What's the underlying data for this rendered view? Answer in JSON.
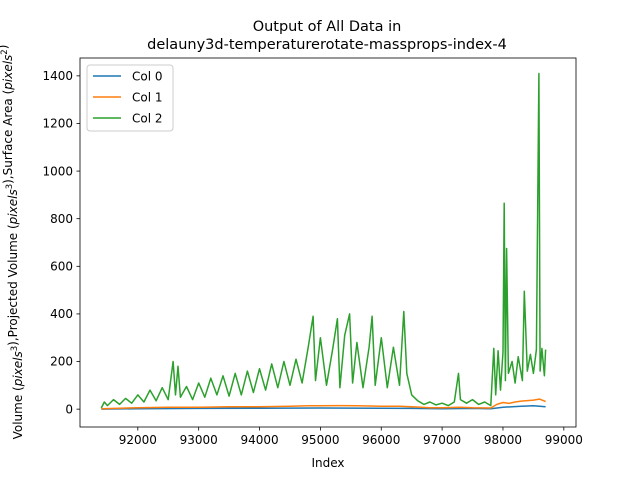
{
  "chart_data": {
    "type": "line",
    "title_line1": "Output of All Data in",
    "title_line2": "delauny3d-temperaturerotate-massprops-index-4",
    "xlabel": "Index",
    "ylabel": "Volume ($pixels^3$),Projected Volume ($pixels^3$),Surface Area ($pixels^2$)",
    "ylabel_parts": [
      {
        "text": "Volume (",
        "italic": false
      },
      {
        "text": "pixels",
        "italic": true
      },
      {
        "text": "3",
        "italic": false,
        "sup": true
      },
      {
        "text": "),Projected Volume (",
        "italic": false
      },
      {
        "text": "pixels",
        "italic": true
      },
      {
        "text": "3",
        "italic": false,
        "sup": true
      },
      {
        "text": "),Surface Area (",
        "italic": false
      },
      {
        "text": "pixels",
        "italic": true
      },
      {
        "text": "2",
        "italic": false,
        "sup": true
      },
      {
        "text": ")",
        "italic": false
      }
    ],
    "xlim": [
      91050,
      99200
    ],
    "ylim": [
      -75,
      1475
    ],
    "xticks": [
      92000,
      93000,
      94000,
      95000,
      96000,
      97000,
      98000,
      99000
    ],
    "xtick_labels": [
      "92000",
      "93000",
      "94000",
      "95000",
      "96000",
      "97000",
      "98000",
      "99000"
    ],
    "yticks": [
      0,
      200,
      400,
      600,
      800,
      1000,
      1200,
      1400
    ],
    "ytick_labels": [
      "0",
      "200",
      "400",
      "600",
      "800",
      "1000",
      "1200",
      "1400"
    ],
    "grid": false,
    "legend_position": "top-left",
    "series": [
      {
        "name": "Col 0",
        "color": "#1f77b4",
        "points": [
          [
            91400,
            0
          ],
          [
            92000,
            2
          ],
          [
            93000,
            3
          ],
          [
            94000,
            4
          ],
          [
            95000,
            5
          ],
          [
            96000,
            4
          ],
          [
            96500,
            3
          ],
          [
            97000,
            2
          ],
          [
            97500,
            3
          ],
          [
            97800,
            2
          ],
          [
            98000,
            8
          ],
          [
            98300,
            12
          ],
          [
            98500,
            14
          ],
          [
            98700,
            10
          ]
        ]
      },
      {
        "name": "Col 1",
        "color": "#ff7f0e",
        "points": [
          [
            91400,
            2
          ],
          [
            91700,
            4
          ],
          [
            92000,
            6
          ],
          [
            92500,
            8
          ],
          [
            93000,
            8
          ],
          [
            93500,
            10
          ],
          [
            94000,
            10
          ],
          [
            94500,
            12
          ],
          [
            94800,
            14
          ],
          [
            95000,
            14
          ],
          [
            95300,
            15
          ],
          [
            95600,
            14
          ],
          [
            96000,
            12
          ],
          [
            96300,
            12
          ],
          [
            96500,
            10
          ],
          [
            96800,
            6
          ],
          [
            97000,
            6
          ],
          [
            97300,
            8
          ],
          [
            97500,
            6
          ],
          [
            97800,
            5
          ],
          [
            97900,
            20
          ],
          [
            98000,
            28
          ],
          [
            98100,
            24
          ],
          [
            98200,
            30
          ],
          [
            98300,
            34
          ],
          [
            98400,
            36
          ],
          [
            98500,
            38
          ],
          [
            98600,
            42
          ],
          [
            98700,
            32
          ]
        ]
      },
      {
        "name": "Col 2",
        "color": "#2ca02c",
        "points": [
          [
            91400,
            5
          ],
          [
            91450,
            30
          ],
          [
            91500,
            15
          ],
          [
            91600,
            40
          ],
          [
            91700,
            20
          ],
          [
            91800,
            45
          ],
          [
            91900,
            25
          ],
          [
            92000,
            60
          ],
          [
            92100,
            30
          ],
          [
            92200,
            80
          ],
          [
            92300,
            35
          ],
          [
            92400,
            90
          ],
          [
            92500,
            40
          ],
          [
            92580,
            200
          ],
          [
            92620,
            60
          ],
          [
            92660,
            180
          ],
          [
            92700,
            50
          ],
          [
            92800,
            95
          ],
          [
            92900,
            40
          ],
          [
            93000,
            110
          ],
          [
            93100,
            50
          ],
          [
            93200,
            130
          ],
          [
            93300,
            60
          ],
          [
            93400,
            140
          ],
          [
            93500,
            55
          ],
          [
            93600,
            150
          ],
          [
            93700,
            60
          ],
          [
            93800,
            160
          ],
          [
            93900,
            70
          ],
          [
            94000,
            170
          ],
          [
            94100,
            80
          ],
          [
            94200,
            190
          ],
          [
            94300,
            90
          ],
          [
            94400,
            200
          ],
          [
            94500,
            100
          ],
          [
            94600,
            210
          ],
          [
            94700,
            110
          ],
          [
            94800,
            260
          ],
          [
            94880,
            390
          ],
          [
            94920,
            120
          ],
          [
            95000,
            300
          ],
          [
            95100,
            100
          ],
          [
            95200,
            250
          ],
          [
            95280,
            380
          ],
          [
            95320,
            90
          ],
          [
            95400,
            310
          ],
          [
            95480,
            400
          ],
          [
            95530,
            110
          ],
          [
            95600,
            280
          ],
          [
            95700,
            90
          ],
          [
            95800,
            260
          ],
          [
            95850,
            390
          ],
          [
            95900,
            100
          ],
          [
            96000,
            300
          ],
          [
            96100,
            90
          ],
          [
            96200,
            260
          ],
          [
            96300,
            100
          ],
          [
            96370,
            410
          ],
          [
            96420,
            150
          ],
          [
            96500,
            60
          ],
          [
            96600,
            35
          ],
          [
            96700,
            20
          ],
          [
            96800,
            30
          ],
          [
            96900,
            18
          ],
          [
            97000,
            25
          ],
          [
            97100,
            15
          ],
          [
            97200,
            30
          ],
          [
            97270,
            150
          ],
          [
            97300,
            40
          ],
          [
            97400,
            25
          ],
          [
            97500,
            40
          ],
          [
            97600,
            20
          ],
          [
            97700,
            30
          ],
          [
            97800,
            15
          ],
          [
            97850,
            255
          ],
          [
            97880,
            60
          ],
          [
            97920,
            245
          ],
          [
            97960,
            80
          ],
          [
            98000,
            240
          ],
          [
            98020,
            865
          ],
          [
            98040,
            120
          ],
          [
            98060,
            675
          ],
          [
            98090,
            150
          ],
          [
            98150,
            200
          ],
          [
            98200,
            110
          ],
          [
            98250,
            220
          ],
          [
            98320,
            120
          ],
          [
            98350,
            495
          ],
          [
            98400,
            160
          ],
          [
            98450,
            230
          ],
          [
            98500,
            150
          ],
          [
            98550,
            250
          ],
          [
            98590,
            1410
          ],
          [
            98610,
            160
          ],
          [
            98640,
            255
          ],
          [
            98680,
            140
          ],
          [
            98700,
            250
          ]
        ]
      }
    ]
  }
}
